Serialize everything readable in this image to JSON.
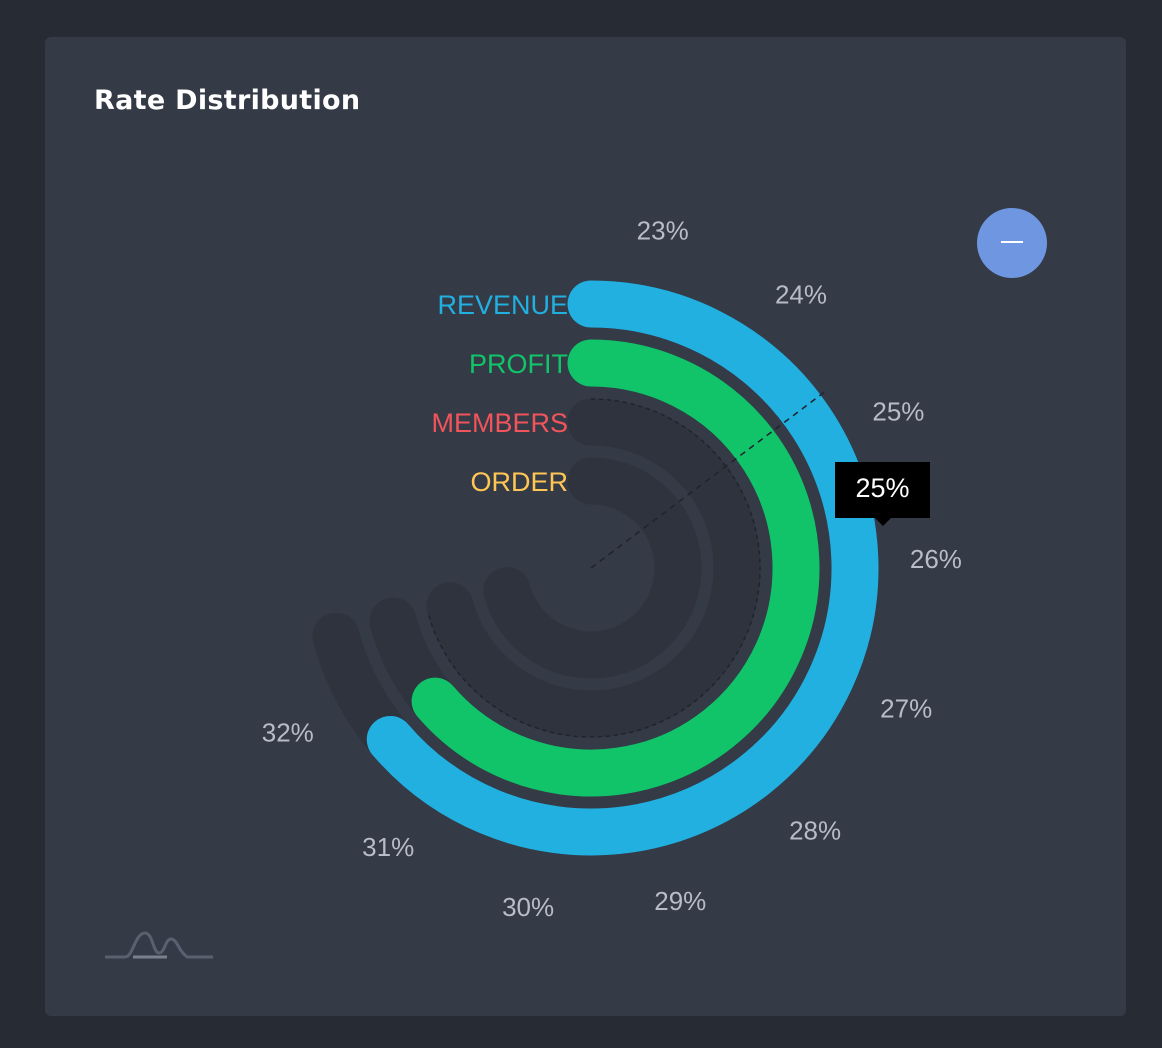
{
  "card": {
    "title": "Rate Distribution"
  },
  "controls": {
    "collapse_icon": "minus-icon"
  },
  "tooltip": {
    "value": "25%"
  },
  "chart_data": {
    "type": "radial-bar",
    "title": "Rate Distribution",
    "angle_axis": {
      "ticks": [
        "23%",
        "24%",
        "25%",
        "26%",
        "27%",
        "28%",
        "29%",
        "30%",
        "31%",
        "32%"
      ],
      "min": 23,
      "max": 33
    },
    "series": [
      {
        "name": "REVENUE",
        "value": 32,
        "color": "#22b0e0"
      },
      {
        "name": "PROFIT",
        "value": 32,
        "color": "#11c46a"
      },
      {
        "name": "MEMBERS",
        "value": null,
        "color": "#f2545b"
      },
      {
        "name": "ORDER",
        "value": null,
        "color": "#ffc654"
      }
    ],
    "track_color": "#2e333e",
    "hover_value": 25
  }
}
